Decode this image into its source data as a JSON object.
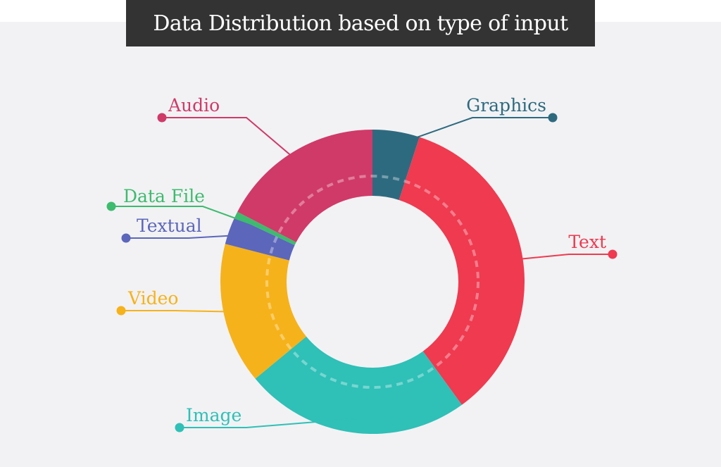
{
  "title": "Data Distribution based on type of input",
  "chart_data": {
    "type": "pie",
    "title": "Data Distribution based on type of input",
    "legend": "callout labels",
    "slices": [
      {
        "label": "Graphics",
        "value": 5.0,
        "color": "#2e6a7f"
      },
      {
        "label": "Text",
        "value": 35.0,
        "color": "#ef3a50"
      },
      {
        "label": "Image",
        "value": 24.0,
        "color": "#2fc0b7"
      },
      {
        "label": "Video",
        "value": 15.0,
        "color": "#f6b21a"
      },
      {
        "label": "Textual",
        "value": 3.0,
        "color": "#5c66bb"
      },
      {
        "label": "Data File",
        "value": 0.6,
        "color": "#3dbb6e"
      },
      {
        "label": "Audio",
        "value": 17.4,
        "color": "#d03a68"
      }
    ]
  }
}
